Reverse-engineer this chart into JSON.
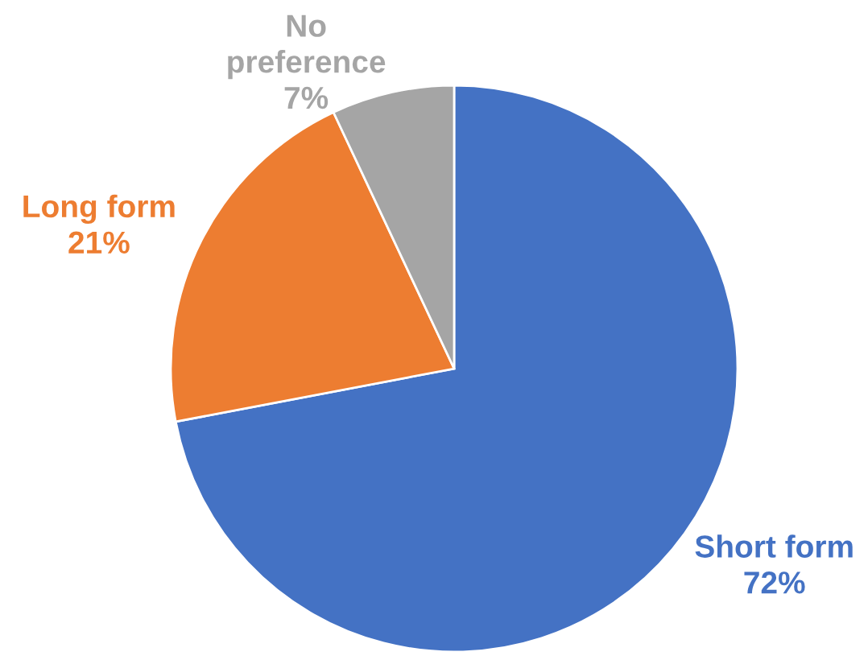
{
  "chart_data": {
    "type": "pie",
    "categories": [
      "Short form",
      "Long form",
      "No preference"
    ],
    "values": [
      72,
      21,
      7
    ],
    "colors": [
      "#4472c4",
      "#ed7d31",
      "#a5a5a5"
    ],
    "value_labels": [
      "72%",
      "21%",
      "7%"
    ]
  }
}
